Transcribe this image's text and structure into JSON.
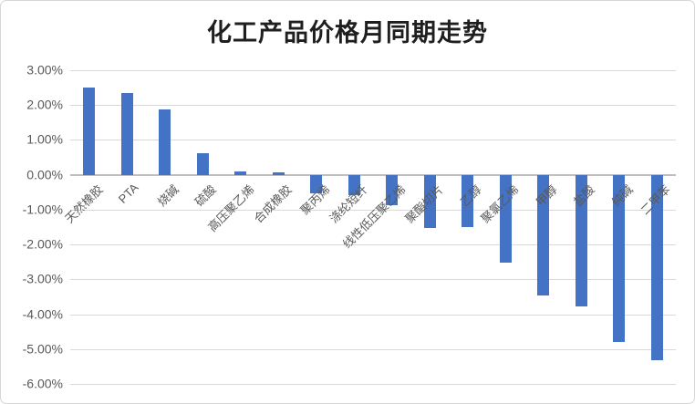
{
  "window": {
    "background_color": "#ffffff",
    "border_color": "#d6d6d6"
  },
  "chart_data": {
    "type": "bar",
    "title": "化工产品价格月同期走势",
    "categories": [
      "天然橡胶",
      "PTA",
      "烧碱",
      "硫酸",
      "高压聚乙烯",
      "合成橡胶",
      "聚丙烯",
      "涤纶短纤",
      "线性低压聚乙烯",
      "聚酯切片",
      "乙醇",
      "聚氯乙烯",
      "甲醇",
      "盐酸",
      "纯碱",
      "二甲苯"
    ],
    "values": [
      2.5,
      2.35,
      1.88,
      0.63,
      0.1,
      0.06,
      -0.52,
      -0.58,
      -0.88,
      -1.52,
      -1.5,
      -2.52,
      -3.45,
      -3.78,
      -4.8,
      -5.33
    ],
    "value_unit": "%",
    "xlabel": "",
    "ylabel": "",
    "ylim": [
      -6,
      3
    ],
    "ytick_step": 1,
    "ytick_labels": [
      "3.00%",
      "2.00%",
      "1.00%",
      "0.00%",
      "-1.00%",
      "-2.00%",
      "-3.00%",
      "-4.00%",
      "-5.00%",
      "-6.00%"
    ],
    "ytick_values": [
      3,
      2,
      1,
      0,
      -1,
      -2,
      -3,
      -4,
      -5,
      -6
    ],
    "grid": "horizontal",
    "legend": "none",
    "bar_color": "#4472c4",
    "gridline_color": "#d9d9d9",
    "axis_line_color": "#bfbfbf",
    "tick_label_color": "#595959",
    "title_color": "#1f1f1f",
    "category_label_rotation_deg": 45
  }
}
